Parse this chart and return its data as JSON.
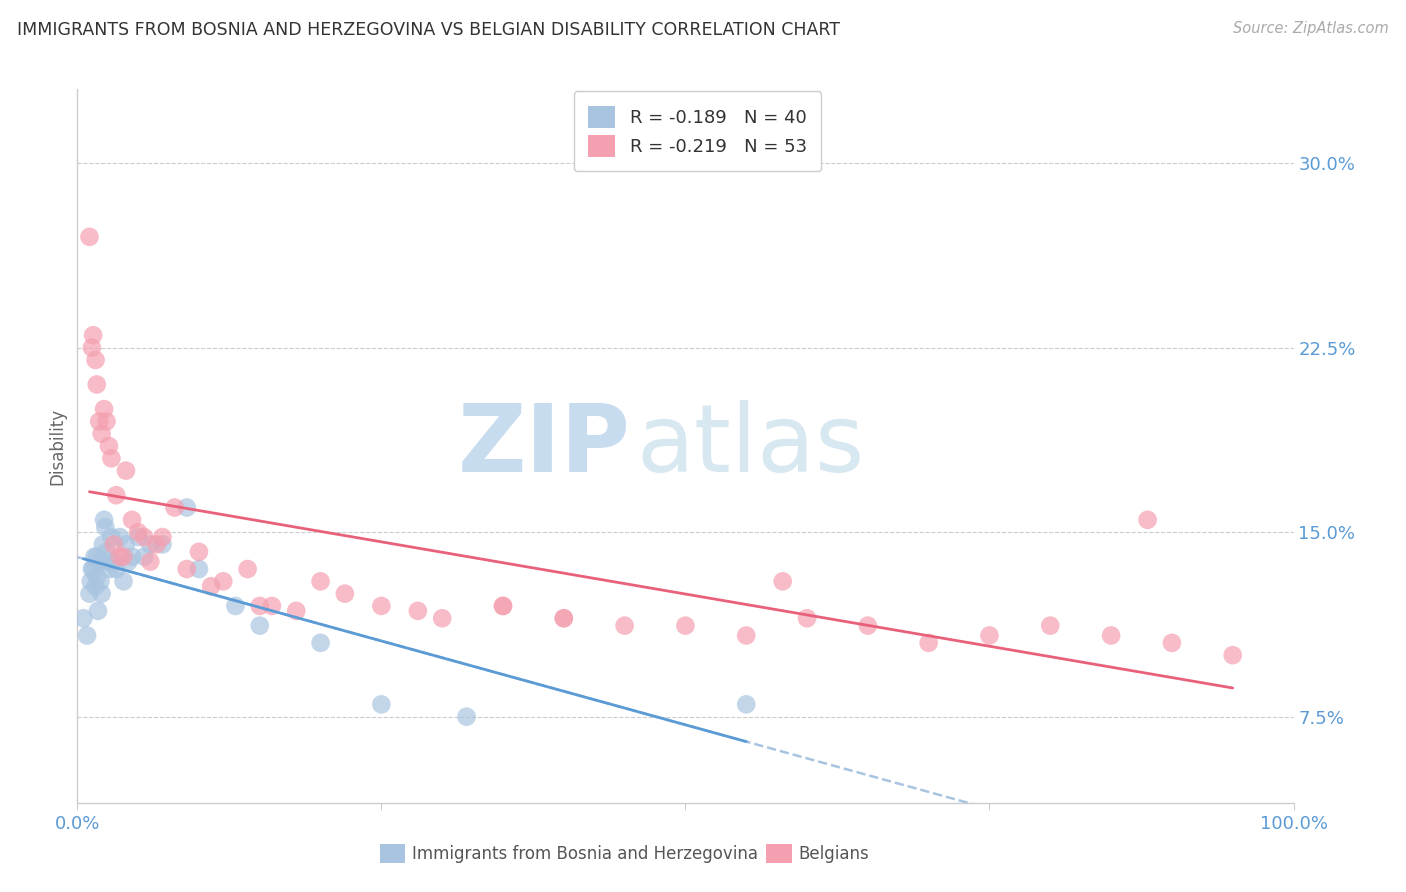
{
  "title": "IMMIGRANTS FROM BOSNIA AND HERZEGOVINA VS BELGIAN DISABILITY CORRELATION CHART",
  "source": "Source: ZipAtlas.com",
  "ylabel": "Disability",
  "xlim": [
    0.0,
    1.0
  ],
  "ylim": [
    0.04,
    0.33
  ],
  "yticks": [
    0.075,
    0.15,
    0.225,
    0.3
  ],
  "ytick_labels": [
    "7.5%",
    "15.0%",
    "22.5%",
    "30.0%"
  ],
  "xtick_labels": [
    "0.0%",
    "",
    "",
    "",
    "100.0%"
  ],
  "legend_r1": "R = -0.189",
  "legend_n1": "N = 40",
  "legend_r2": "R = -0.219",
  "legend_n2": "N = 53",
  "series1_color": "#a8c4e0",
  "series2_color": "#f4a0b0",
  "line1_color": "#5b9bd5",
  "line2_color": "#e8607a",
  "dashed_color": "#a8c4e0",
  "watermark_zip": "ZIP",
  "watermark_atlas": "atlas",
  "watermark_color": "#d8e8f5",
  "background_color": "#ffffff",
  "grid_color": "#cccccc",
  "label_color": "#5b9bd5",
  "title_color": "#333333",
  "bottom_legend1": "Immigrants from Bosnia and Herzegovina",
  "bottom_legend2": "Belgians",
  "series1_x": [
    0.005,
    0.008,
    0.01,
    0.011,
    0.012,
    0.013,
    0.014,
    0.015,
    0.016,
    0.016,
    0.017,
    0.018,
    0.019,
    0.02,
    0.021,
    0.022,
    0.023,
    0.024,
    0.025,
    0.027,
    0.028,
    0.03,
    0.032,
    0.035,
    0.038,
    0.04,
    0.042,
    0.045,
    0.05,
    0.055,
    0.06,
    0.07,
    0.09,
    0.1,
    0.13,
    0.15,
    0.2,
    0.25,
    0.32,
    0.55
  ],
  "series1_y": [
    0.115,
    0.108,
    0.125,
    0.13,
    0.135,
    0.135,
    0.14,
    0.128,
    0.132,
    0.14,
    0.118,
    0.138,
    0.13,
    0.125,
    0.145,
    0.155,
    0.152,
    0.142,
    0.138,
    0.135,
    0.148,
    0.138,
    0.135,
    0.148,
    0.13,
    0.145,
    0.138,
    0.14,
    0.148,
    0.14,
    0.145,
    0.145,
    0.16,
    0.135,
    0.12,
    0.112,
    0.105,
    0.08,
    0.075,
    0.08
  ],
  "series2_x": [
    0.01,
    0.012,
    0.013,
    0.015,
    0.016,
    0.018,
    0.02,
    0.022,
    0.024,
    0.026,
    0.028,
    0.03,
    0.032,
    0.035,
    0.038,
    0.04,
    0.045,
    0.05,
    0.055,
    0.06,
    0.065,
    0.07,
    0.08,
    0.09,
    0.1,
    0.11,
    0.12,
    0.14,
    0.15,
    0.16,
    0.18,
    0.2,
    0.22,
    0.25,
    0.28,
    0.3,
    0.35,
    0.4,
    0.45,
    0.5,
    0.55,
    0.6,
    0.65,
    0.7,
    0.75,
    0.8,
    0.85,
    0.9,
    0.95,
    0.58,
    0.35,
    0.4,
    0.88
  ],
  "series2_y": [
    0.27,
    0.225,
    0.23,
    0.22,
    0.21,
    0.195,
    0.19,
    0.2,
    0.195,
    0.185,
    0.18,
    0.145,
    0.165,
    0.14,
    0.14,
    0.175,
    0.155,
    0.15,
    0.148,
    0.138,
    0.145,
    0.148,
    0.16,
    0.135,
    0.142,
    0.128,
    0.13,
    0.135,
    0.12,
    0.12,
    0.118,
    0.13,
    0.125,
    0.12,
    0.118,
    0.115,
    0.12,
    0.115,
    0.112,
    0.112,
    0.108,
    0.115,
    0.112,
    0.105,
    0.108,
    0.112,
    0.108,
    0.105,
    0.1,
    0.13,
    0.12,
    0.115,
    0.155
  ]
}
